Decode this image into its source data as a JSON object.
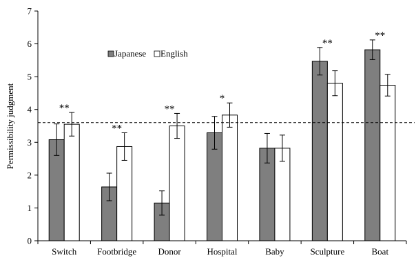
{
  "chart_data": {
    "type": "bar",
    "title": "",
    "xlabel": "",
    "ylabel": "Permissibility judgment",
    "ylim": [
      0,
      7
    ],
    "yticks": [
      "0",
      "1",
      "2",
      "3",
      "4",
      "5",
      "6",
      "7"
    ],
    "categories": [
      "Switch",
      "Footbridge",
      "Donor",
      "Hospital",
      "Baby",
      "Sculpture",
      "Boat"
    ],
    "series": [
      {
        "name": "Japanese",
        "color": "#7f7f7f",
        "values": [
          3.08,
          1.64,
          1.15,
          3.29,
          2.82,
          5.47,
          5.82
        ],
        "errors": [
          0.48,
          0.42,
          0.37,
          0.5,
          0.45,
          0.42,
          0.3
        ]
      },
      {
        "name": "English",
        "color": "#ffffff",
        "values": [
          3.55,
          2.87,
          3.5,
          3.83,
          2.82,
          4.8,
          4.74
        ],
        "errors": [
          0.36,
          0.42,
          0.38,
          0.37,
          0.4,
          0.38,
          0.33
        ]
      }
    ],
    "reference_line": 3.6,
    "significance": [
      "**",
      "**",
      "**",
      "*",
      "",
      "**",
      "**"
    ],
    "legend_position": "top-left",
    "grid": false
  }
}
